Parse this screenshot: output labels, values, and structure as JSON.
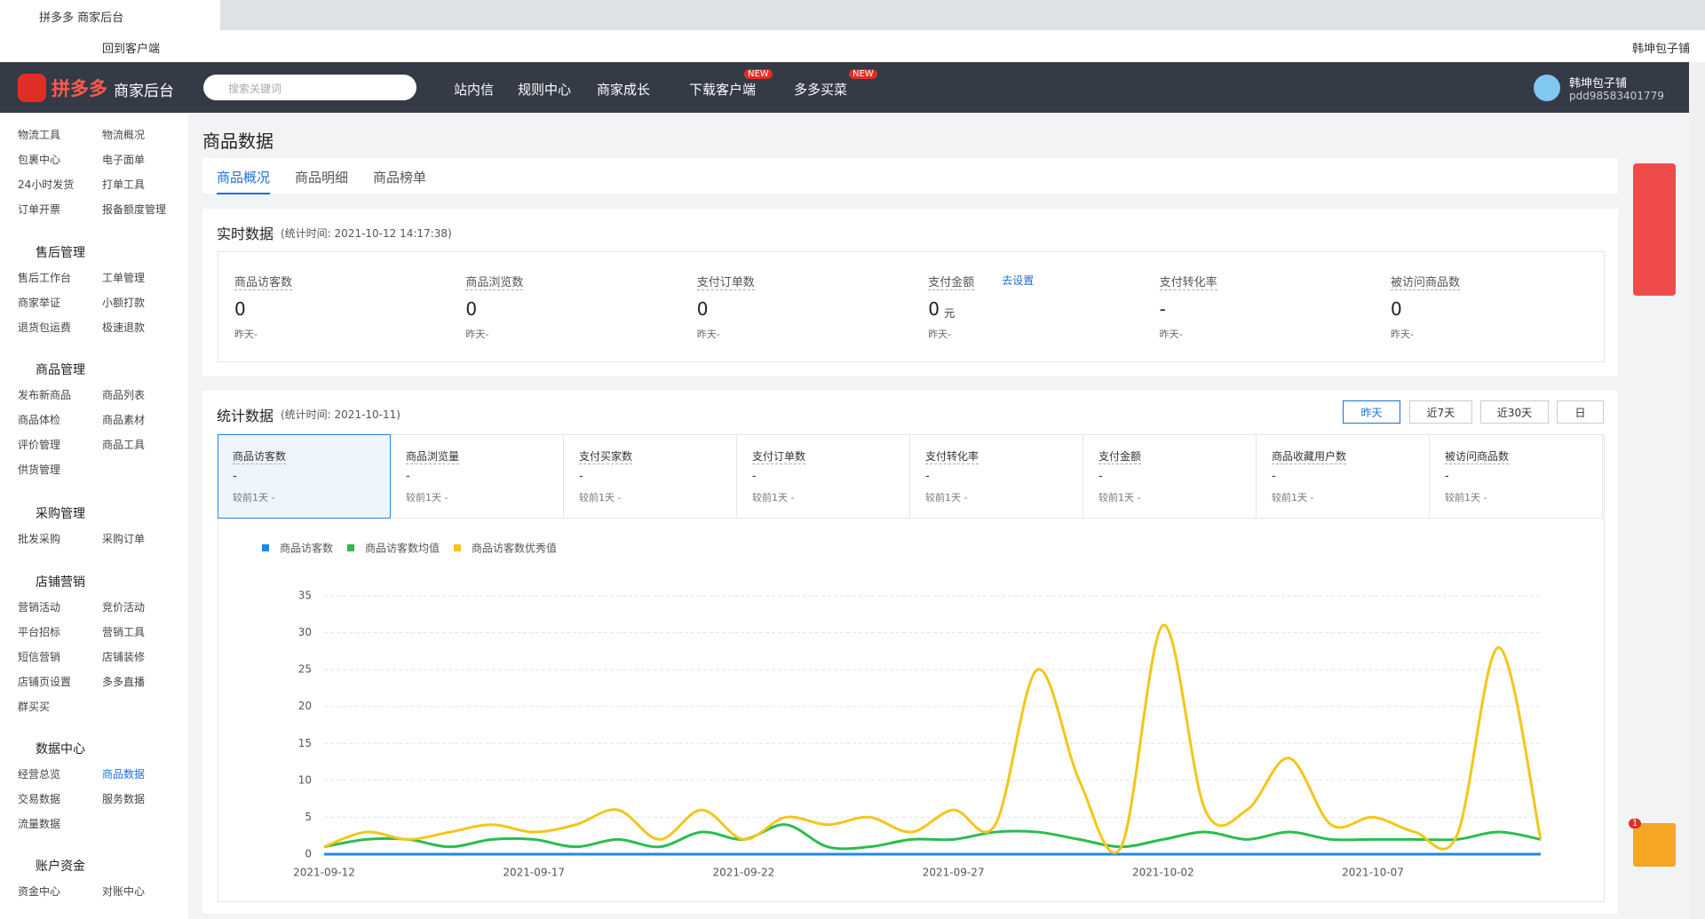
{
  "browser": {
    "tab_title": "拼多多 商家后台",
    "back_link": "回到客户端",
    "account": "韩坤包子铺"
  },
  "nav": {
    "logo": "拼多多",
    "brand": "商家后台",
    "search_placeholder": "搜索关键词",
    "menu": [
      {
        "label": "站内信"
      },
      {
        "label": "规则中心"
      },
      {
        "label": "商家成长"
      },
      {
        "label": "下载客户端",
        "badge": "NEW"
      },
      {
        "label": "多多买菜",
        "badge": "NEW"
      }
    ],
    "user_name": "韩坤包子铺",
    "user_id": "pdd98583401779"
  },
  "sidebar": {
    "groups": [
      {
        "items": [
          "物流工具",
          "物流概况",
          "包裹中心",
          "电子面单",
          "24小时发货",
          "打单工具",
          "订单开票",
          "报备额度管理"
        ]
      },
      {
        "title": "售后管理",
        "items": [
          "售后工作台",
          "工单管理",
          "商家举证",
          "小额打款",
          "退货包运费",
          "极速退款"
        ]
      },
      {
        "title": "商品管理",
        "items": [
          "发布新商品",
          "商品列表",
          "商品体检",
          "商品素材",
          "评价管理",
          "商品工具",
          "供货管理"
        ]
      },
      {
        "title": "采购管理",
        "items": [
          "批发采购",
          "采购订单"
        ]
      },
      {
        "title": "店铺营销",
        "items": [
          "营销活动",
          "竞价活动",
          "平台招标",
          "营销工具",
          "短信营销",
          "店铺装修",
          "店铺页设置",
          "多多直播",
          "群买买"
        ]
      },
      {
        "title": "数据中心",
        "items": [
          "经营总览",
          "商品数据",
          "交易数据",
          "服务数据",
          "流量数据"
        ]
      },
      {
        "title": "账户资金",
        "items": [
          "资金中心",
          "对账中心"
        ]
      }
    ],
    "active": "商品数据"
  },
  "page": {
    "title": "商品数据",
    "tabs": [
      "商品概况",
      "商品明细",
      "商品榜单"
    ],
    "realtime": {
      "title": "实时数据",
      "time": "(统计时间: 2021-10-12 14:17:38)",
      "set_link": "去设置",
      "metrics": [
        {
          "label": "商品访客数",
          "value": "0",
          "sub": "昨天-"
        },
        {
          "label": "商品浏览数",
          "value": "0",
          "sub": "昨天-"
        },
        {
          "label": "支付订单数",
          "value": "0",
          "sub": "昨天-"
        },
        {
          "label": "支付金额",
          "value": "0",
          "unit": "元",
          "sub": "昨天-"
        },
        {
          "label": "支付转化率",
          "value": "-",
          "sub": "昨天-"
        },
        {
          "label": "被访问商品数",
          "value": "0",
          "sub": "昨天-"
        }
      ]
    },
    "stats": {
      "title": "统计数据",
      "time": "(统计时间: 2021-10-11)",
      "ranges": [
        "昨天",
        "近7天",
        "近30天",
        "日"
      ],
      "cards": [
        {
          "label": "商品访客数",
          "value": "-",
          "sub": "较前1天 -"
        },
        {
          "label": "商品浏览量",
          "value": "-",
          "sub": "较前1天 -"
        },
        {
          "label": "支付买家数",
          "value": "-",
          "sub": "较前1天 -"
        },
        {
          "label": "支付订单数",
          "value": "-",
          "sub": "较前1天 -"
        },
        {
          "label": "支付转化率",
          "value": "-",
          "sub": "较前1天 -"
        },
        {
          "label": "支付金额",
          "value": "-",
          "sub": "较前1天 -"
        },
        {
          "label": "商品收藏用户数",
          "value": "-",
          "sub": "较前1天 -"
        },
        {
          "label": "被访问商品数",
          "value": "-",
          "sub": "较前1天 -"
        }
      ]
    }
  },
  "mail_badge": "1",
  "chart_data": {
    "type": "line",
    "x": [
      "2021-09-12",
      null,
      null,
      null,
      null,
      "2021-09-17",
      null,
      null,
      null,
      null,
      "2021-09-22",
      null,
      null,
      null,
      null,
      "2021-09-27",
      null,
      null,
      null,
      null,
      "2021-10-02",
      null,
      null,
      null,
      null,
      "2021-10-07",
      null,
      null,
      null,
      null
    ],
    "ylim": [
      0,
      35
    ],
    "yticks": [
      0,
      5,
      10,
      15,
      20,
      25,
      30,
      35
    ],
    "grid": true,
    "legend": "top-left",
    "series": [
      {
        "name": "商品访客数",
        "color": "#1e88e5",
        "values": [
          0,
          0,
          0,
          0,
          0,
          0,
          0,
          0,
          0,
          0,
          0,
          0,
          0,
          0,
          0,
          0,
          0,
          0,
          0,
          0,
          0,
          0,
          0,
          0,
          0,
          0,
          0,
          0,
          0,
          0
        ]
      },
      {
        "name": "商品访客数均值",
        "color": "#2bbd4e",
        "values": [
          1,
          2,
          2,
          1,
          2,
          2,
          1,
          2,
          1,
          3,
          2,
          4,
          1,
          1,
          2,
          2,
          3,
          3,
          2,
          1,
          2,
          3,
          2,
          3,
          2,
          2,
          2,
          2,
          3,
          2
        ]
      },
      {
        "name": "商品访客数优秀值",
        "color": "#f5c518",
        "values": [
          1,
          3,
          2,
          3,
          4,
          3,
          4,
          6,
          2,
          6,
          2,
          5,
          4,
          5,
          3,
          6,
          4,
          25,
          10,
          1,
          31,
          6,
          6,
          13,
          4,
          5,
          3,
          2.5,
          28,
          2
        ]
      }
    ]
  }
}
